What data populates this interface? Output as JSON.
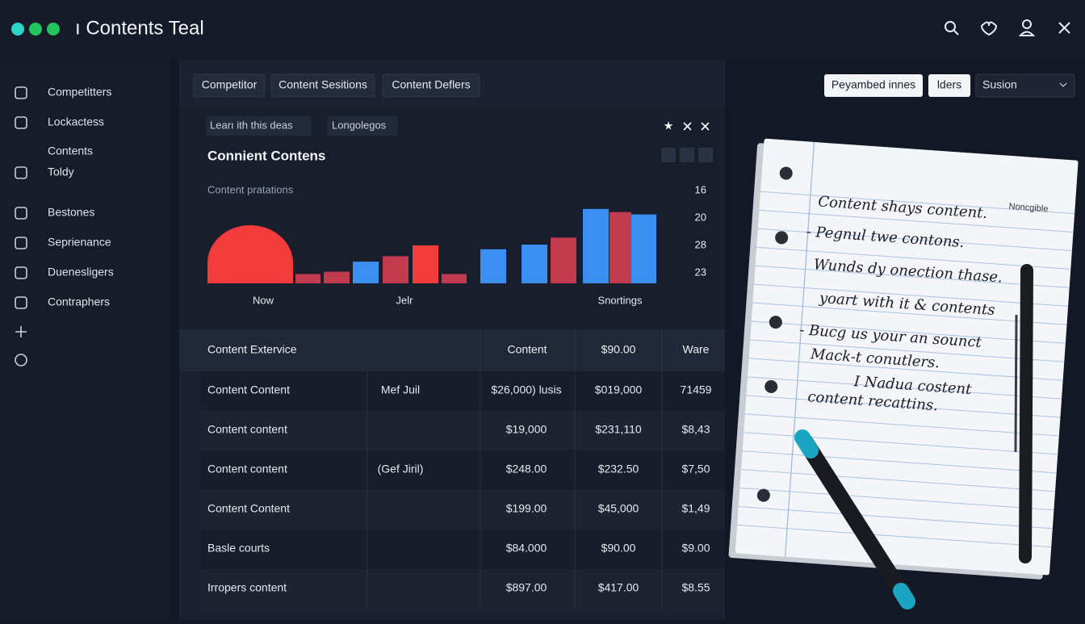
{
  "window": {
    "title": "ı Contents Teal"
  },
  "sidebar": {
    "items": [
      "Competitters",
      "Lockactess",
      "Contents",
      "Toldy",
      "Bestones",
      "Seprienance",
      "Duenesligers",
      "Contraphers"
    ]
  },
  "toolbar": {
    "tabs": [
      "Competitor",
      "Content Sesitions",
      "Content Deflers"
    ],
    "buttons": [
      "Peyambed innes",
      "lders"
    ],
    "select": "Susion"
  },
  "chart_data": {
    "type": "bar",
    "filter": "Learı ith this deas",
    "tag": "Longolegos",
    "title": "Connient Contens",
    "subtitle": "Content pratations",
    "side_labels": [
      16,
      20,
      28,
      23
    ],
    "x_labels": [
      "Now",
      "Jelr",
      "Snortings"
    ],
    "values": [
      75,
      12,
      15,
      28,
      35,
      49,
      12,
      44,
      50,
      59,
      96,
      92,
      89
    ],
    "colors": [
      "#f23b3b",
      "#c23a4e",
      "#c23a4e",
      "#3b8ff0",
      "#c23a4e",
      "#f23b3b",
      "#c23a4e",
      "#3b8ff0",
      "#3b8ff0",
      "#c23a4e",
      "#3b8ff0",
      "#c23a4e",
      "#3b8ff0"
    ],
    "ylim": [
      0,
      100
    ]
  },
  "table": {
    "header": [
      "Content Extervice",
      "Content",
      "$90.00",
      "Ware"
    ],
    "rows": [
      [
        "Content Content",
        "Mef Juil",
        "$26,000) lusis",
        "$019,000",
        "71459"
      ],
      [
        "Content content",
        null,
        "$19,000",
        "$231,110",
        "$8,43"
      ],
      [
        "Content content",
        "(Gef Jiril)",
        "$248.00",
        "$232.50",
        "$7,50"
      ],
      [
        "Content Content",
        null,
        "$199.00",
        "$45,000",
        "$1,49"
      ],
      [
        "Basle courts",
        null,
        "$84.000",
        "$90.00",
        "$9.00"
      ],
      [
        "Irropers content",
        null,
        "$897.00",
        "$417.00",
        "$8.55"
      ]
    ]
  },
  "notebook": {
    "corner": "Noncgible",
    "lines": [
      "Content shays content.",
      "- Pegnul twe contons.",
      "Wunds dy onection thase.",
      "yoart with it & contents",
      "- Bucg us your an sounct",
      "Mack-t conutlers.",
      "I Nadua costent",
      "content recattins."
    ]
  }
}
